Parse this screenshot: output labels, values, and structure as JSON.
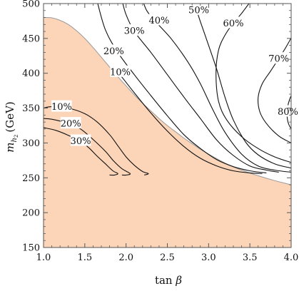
{
  "chart_data": {
    "type": "contour",
    "title": "",
    "xlabel": "tan β",
    "xlabel_parts": {
      "text": "tan ",
      "symbol": "β"
    },
    "ylabel": "m_{h2} (GeV)",
    "ylabel_parts": {
      "m": "m",
      "sub1": "h",
      "sub2": "2",
      "unit": "(GeV)"
    },
    "xlim": [
      1.0,
      4.0
    ],
    "ylim": [
      150,
      500
    ],
    "xticks": [
      "1.0",
      "1.5",
      "2.0",
      "2.5",
      "3.0",
      "3.5",
      "4.0"
    ],
    "yticks": [
      "150",
      "200",
      "250",
      "300",
      "350",
      "400",
      "450",
      "500"
    ],
    "grid": false,
    "colors": {
      "excluded_fill": "#fcd5b8",
      "excluded_edge": "#9a9a9a",
      "contour": "#111111",
      "frame": "#555555"
    },
    "excluded_region": {
      "points": [
        [
          1.0,
          150
        ],
        [
          1.0,
          480
        ],
        [
          1.1,
          479.5
        ],
        [
          1.2,
          476
        ],
        [
          1.3,
          470
        ],
        [
          1.4,
          461
        ],
        [
          1.5,
          450
        ],
        [
          1.6,
          437
        ],
        [
          1.7,
          423
        ],
        [
          1.8,
          409
        ],
        [
          1.9,
          395
        ],
        [
          2.0,
          382
        ],
        [
          2.1,
          369
        ],
        [
          2.2,
          357
        ],
        [
          2.3,
          346
        ],
        [
          2.4,
          335
        ],
        [
          2.5,
          325
        ],
        [
          2.6,
          316
        ],
        [
          2.7,
          307
        ],
        [
          2.8,
          299
        ],
        [
          2.9,
          291
        ],
        [
          3.0,
          284
        ],
        [
          3.2,
          271
        ],
        [
          3.4,
          261
        ],
        [
          3.6,
          253
        ],
        [
          3.8,
          246
        ],
        [
          4.0,
          240
        ],
        [
          4.0,
          150
        ]
      ]
    },
    "upper_contours": [
      {
        "label": "10%",
        "label_at": [
          1.93,
          402
        ],
        "points": [
          [
            1.9,
            402
          ],
          [
            2.1,
            372
          ],
          [
            2.3,
            343
          ],
          [
            2.5,
            317
          ],
          [
            2.7,
            295
          ],
          [
            2.9,
            278
          ],
          [
            3.1,
            267
          ],
          [
            3.3,
            260
          ],
          [
            3.5,
            257
          ],
          [
            3.65,
            256
          ]
        ]
      },
      {
        "label": "20%",
        "label_at": [
          1.85,
          432
        ],
        "points": [
          [
            1.65,
            503
          ],
          [
            1.75,
            462
          ],
          [
            1.9,
            430
          ],
          [
            2.1,
            398
          ],
          [
            2.3,
            368
          ],
          [
            2.5,
            339
          ],
          [
            2.7,
            312
          ],
          [
            2.9,
            292
          ],
          [
            3.1,
            276
          ],
          [
            3.3,
            266
          ],
          [
            3.5,
            260
          ],
          [
            3.7,
            257
          ]
        ]
      },
      {
        "label": "30%",
        "label_at": [
          2.1,
          461
        ],
        "points": [
          [
            1.95,
            505
          ],
          [
            2.0,
            484
          ],
          [
            2.1,
            460
          ],
          [
            2.3,
            430
          ],
          [
            2.5,
            398
          ],
          [
            2.7,
            366
          ],
          [
            2.9,
            335
          ],
          [
            3.1,
            304
          ],
          [
            3.3,
            282
          ],
          [
            3.5,
            267
          ],
          [
            3.7,
            261
          ],
          [
            3.85,
            258
          ]
        ]
      },
      {
        "label": "40%",
        "label_at": [
          2.4,
          476
        ],
        "points": [
          [
            2.2,
            505
          ],
          [
            2.25,
            490
          ],
          [
            2.35,
            475
          ],
          [
            2.55,
            449
          ],
          [
            2.75,
            416
          ],
          [
            2.9,
            385
          ],
          [
            3.05,
            348
          ],
          [
            3.2,
            315
          ],
          [
            3.4,
            284
          ],
          [
            3.6,
            267
          ],
          [
            3.8,
            261
          ],
          [
            4.0,
            258
          ]
        ]
      },
      {
        "label": "50%",
        "label_at": [
          2.88,
          491
        ],
        "points": [
          [
            2.78,
            505
          ],
          [
            2.85,
            491
          ],
          [
            2.9,
            474
          ],
          [
            3.0,
            440
          ],
          [
            3.1,
            405
          ],
          [
            3.2,
            365
          ],
          [
            3.3,
            333
          ],
          [
            3.45,
            301
          ],
          [
            3.6,
            283
          ],
          [
            3.8,
            270
          ],
          [
            4.0,
            264
          ]
        ]
      },
      {
        "label": "60%",
        "label_at": [
          3.3,
          472
        ],
        "points": [
          [
            3.52,
            505
          ],
          [
            3.4,
            486
          ],
          [
            3.3,
            472
          ],
          [
            3.2,
            455
          ],
          [
            3.12,
            433
          ],
          [
            3.09,
            400
          ],
          [
            3.12,
            360
          ],
          [
            3.22,
            333
          ],
          [
            3.4,
            309
          ],
          [
            3.6,
            292
          ],
          [
            3.8,
            280
          ],
          [
            4.0,
            272
          ]
        ]
      },
      {
        "label": "70%",
        "label_at": [
          3.85,
          421
        ],
        "points": [
          [
            4.05,
            462
          ],
          [
            3.95,
            440
          ],
          [
            3.85,
            421
          ],
          [
            3.75,
            403
          ],
          [
            3.65,
            385
          ],
          [
            3.6,
            365
          ],
          [
            3.62,
            345
          ],
          [
            3.7,
            328
          ],
          [
            3.85,
            310
          ],
          [
            4.0,
            300
          ]
        ]
      },
      {
        "label": "80%",
        "label_at": [
          3.96,
          345
        ],
        "points": [
          [
            4.05,
            380
          ],
          [
            3.98,
            362
          ],
          [
            3.95,
            345
          ],
          [
            3.97,
            327
          ],
          [
            4.05,
            312
          ]
        ]
      }
    ],
    "lower_contours": [
      {
        "label": "10%",
        "label_at": [
          1.22,
          352
        ],
        "points": [
          [
            1.0,
            350
          ],
          [
            1.1,
            352
          ],
          [
            1.3,
            350
          ],
          [
            1.5,
            342
          ],
          [
            1.65,
            330
          ],
          [
            1.8,
            312
          ],
          [
            1.9,
            296
          ],
          [
            2.0,
            280
          ],
          [
            2.1,
            268
          ],
          [
            2.2,
            259
          ],
          [
            2.27,
            256
          ],
          [
            2.22,
            254
          ]
        ]
      },
      {
        "label": "20%",
        "label_at": [
          1.33,
          328
        ],
        "points": [
          [
            1.0,
            335
          ],
          [
            1.1,
            334
          ],
          [
            1.3,
            328
          ],
          [
            1.45,
            320
          ],
          [
            1.6,
            305
          ],
          [
            1.75,
            288
          ],
          [
            1.85,
            274
          ],
          [
            1.95,
            263
          ],
          [
            2.05,
            256
          ],
          [
            2.0,
            254
          ],
          [
            1.95,
            254
          ]
        ]
      },
      {
        "label": "30%",
        "label_at": [
          1.45,
          303
        ],
        "points": [
          [
            1.0,
            322
          ],
          [
            1.15,
            318
          ],
          [
            1.3,
            311
          ],
          [
            1.45,
            302
          ],
          [
            1.55,
            293
          ],
          [
            1.65,
            281
          ],
          [
            1.75,
            270
          ],
          [
            1.84,
            260
          ],
          [
            1.9,
            256
          ],
          [
            1.86,
            254
          ],
          [
            1.8,
            254
          ]
        ]
      }
    ]
  }
}
